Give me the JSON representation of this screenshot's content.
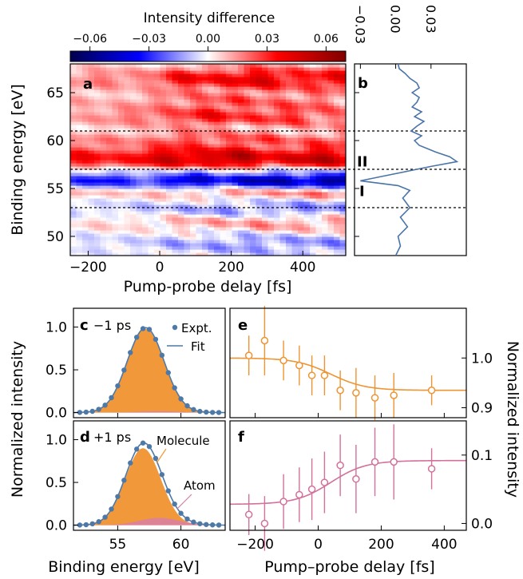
{
  "chart_data": [
    {
      "panel": "a",
      "type": "heatmap",
      "colorbar": {
        "label": "Intensity difference",
        "ticks": [
          "−0.06",
          "−0.03",
          "0.00",
          "0.03",
          "0.06"
        ],
        "range": [
          -0.07,
          0.07
        ],
        "colormap": "seismic"
      },
      "xlabel": "Pump-probe delay [fs]",
      "ylabel": "Binding energy [eV]",
      "xlim": [
        -250,
        520
      ],
      "ylim": [
        48,
        68
      ],
      "xticks": [
        "−200",
        "0",
        "200",
        "400"
      ],
      "yticks": [
        "50",
        "55",
        "60",
        "65"
      ],
      "dashed_lines_y": [
        61,
        57,
        53
      ],
      "bands": [
        {
          "y": 66.5,
          "w": 0.9,
          "amp": 0.045
        },
        {
          "y": 64.2,
          "w": 0.7,
          "amp": 0.02
        },
        {
          "y": 62.5,
          "w": 0.8,
          "amp": 0.035
        },
        {
          "y": 60.2,
          "w": 0.6,
          "amp": 0.025
        },
        {
          "y": 58.2,
          "w": 0.9,
          "amp": 0.07
        },
        {
          "y": 57.0,
          "w": 0.3,
          "amp": -0.02
        },
        {
          "y": 55.9,
          "w": 0.55,
          "amp": -0.07
        },
        {
          "y": 54.6,
          "w": 0.4,
          "amp": 0.02
        },
        {
          "y": 52.8,
          "w": 0.6,
          "amp": -0.02
        },
        {
          "y": 51.5,
          "w": 0.8,
          "amp": 0.015
        },
        {
          "y": 49.3,
          "w": 0.8,
          "amp": -0.015
        }
      ]
    },
    {
      "panel": "b",
      "type": "line",
      "xticks": [
        "−0.03",
        "0.00",
        "0.03"
      ],
      "xlim": [
        -0.035,
        0.06
      ],
      "labels": [
        "II",
        "I"
      ],
      "label_y": [
        57.8,
        54.7
      ],
      "y": [
        48.0,
        49.0,
        50.0,
        51.0,
        52.0,
        53.0,
        54.0,
        54.8,
        55.3,
        55.8,
        56.3,
        56.8,
        57.3,
        57.8,
        58.3,
        58.8,
        59.5,
        60.0,
        60.5,
        61.0,
        61.5,
        62.0,
        62.5,
        63.0,
        63.5,
        64.0,
        64.5,
        65.0,
        65.5,
        66.0,
        66.5,
        67.0,
        67.5,
        68.0
      ],
      "x": [
        0.0,
        0.004,
        0.002,
        0.01,
        0.004,
        0.012,
        0.006,
        0.012,
        0.002,
        -0.03,
        -0.01,
        0.01,
        0.03,
        0.052,
        0.046,
        0.034,
        0.02,
        0.016,
        0.022,
        0.013,
        0.018,
        0.024,
        0.016,
        0.022,
        0.014,
        0.018,
        0.02,
        0.014,
        0.02,
        0.018,
        0.012,
        0.008,
        0.003,
        0.002
      ]
    },
    {
      "panel": "c",
      "type": "scatter",
      "title": "−1 ps",
      "legend": [
        "Expt.",
        "Fit"
      ],
      "xlim": [
        51.5,
        63.5
      ],
      "ylim": [
        -0.06,
        1.22
      ],
      "yticks": [
        "0.0",
        "0.5",
        "1.0"
      ],
      "peak": {
        "center": 57.2,
        "sigma": 1.45,
        "amplitude": 0.98
      },
      "atom": {
        "center": 58.2,
        "sigma": 1.6,
        "amplitude": 0.015
      },
      "x": [
        52.0,
        52.5,
        53.0,
        53.5,
        54.0,
        54.5,
        55.0,
        55.5,
        56.0,
        56.5,
        57.0,
        57.5,
        58.0,
        58.5,
        59.0,
        59.5,
        60.0,
        60.5,
        61.0,
        61.5,
        62.0,
        62.5,
        63.0
      ]
    },
    {
      "panel": "d",
      "type": "scatter",
      "title": "+1 ps",
      "annotations": [
        "Molecule",
        "Atom"
      ],
      "xlim": [
        51.5,
        63.5
      ],
      "ylim": [
        -0.06,
        1.22
      ],
      "xticks": [
        "55",
        "60"
      ],
      "yticks": [
        "0.0",
        "0.5",
        "1.0"
      ],
      "xlabel": "Binding energy [eV]",
      "peak": {
        "center": 57.0,
        "sigma": 1.4,
        "amplitude": 0.9
      },
      "atom": {
        "center": 58.3,
        "sigma": 1.6,
        "amplitude": 0.085
      },
      "x": [
        52.0,
        52.5,
        53.0,
        53.5,
        54.0,
        54.5,
        55.0,
        55.5,
        56.0,
        56.5,
        57.0,
        57.5,
        58.0,
        58.5,
        59.0,
        59.5,
        60.0,
        60.5,
        61.0,
        61.5,
        62.0,
        62.5,
        63.0
      ]
    },
    {
      "panel": "e",
      "type": "scatter",
      "xlim": [
        -280,
        470
      ],
      "ylim": [
        0.88,
        1.1
      ],
      "yticks": [
        "0.9",
        "1.0"
      ],
      "x": [
        -220,
        -170,
        -110,
        -60,
        -20,
        20,
        70,
        120,
        180,
        240,
        360
      ],
      "y": [
        1.005,
        1.035,
        0.995,
        0.985,
        0.965,
        0.965,
        0.935,
        0.93,
        0.92,
        0.925,
        0.935
      ],
      "err": [
        0.04,
        0.07,
        0.04,
        0.04,
        0.04,
        0.04,
        0.04,
        0.05,
        0.045,
        0.045,
        0.03
      ],
      "fit": {
        "y0": 1.0,
        "y1": 0.935,
        "t0": 40,
        "tau": 55
      },
      "color": "#ee9432"
    },
    {
      "panel": "f",
      "type": "scatter",
      "xlim": [
        -280,
        470
      ],
      "ylim": [
        -0.01,
        0.15
      ],
      "xticks": [
        "−200",
        "0",
        "200",
        "400"
      ],
      "yticks": [
        "0.0",
        "0.1"
      ],
      "xlabel": "Pump–probe delay [fs]",
      "ylabel": "Normalized intensity",
      "x": [
        -220,
        -170,
        -110,
        -60,
        -20,
        20,
        70,
        120,
        180,
        240,
        360
      ],
      "y": [
        0.013,
        0.0,
        0.032,
        0.042,
        0.05,
        0.06,
        0.085,
        0.065,
        0.09,
        0.09,
        0.08
      ],
      "err": [
        0.03,
        0.04,
        0.04,
        0.04,
        0.045,
        0.045,
        0.045,
        0.05,
        0.05,
        0.055,
        0.03
      ],
      "fit": {
        "y0": 0.028,
        "y1": 0.092,
        "t0": 40,
        "tau": 55
      },
      "color": "#d2719b"
    }
  ],
  "labels": {
    "cbar_label": "Intensity difference",
    "ylabel_a": "Binding energy [eV]",
    "xlabel_a": "Pump-probe delay [fs]",
    "ylabel_cd": "Normalized intensity",
    "xlabel_d": "Binding energy [eV]",
    "xlabel_f": "Pump–probe delay [fs]",
    "ylabel_ef": "Normalized intensity",
    "panel_a": "a",
    "panel_b": "b",
    "panel_c": "c",
    "panel_d": "d",
    "panel_e": "e",
    "panel_f": "f",
    "legend_expt": "Expt.",
    "legend_fit": "Fit",
    "c_title": "−1 ps",
    "d_title": "+1 ps",
    "ann_molecule": "Molecule",
    "ann_atom": "Atom",
    "b_label_II": "II",
    "b_label_I": "I"
  },
  "colors": {
    "expt": "#4e79a7",
    "fit": "#4e79a7",
    "molecule": "#f0983a",
    "atom": "#d87fa6",
    "e": "#ee9432",
    "f": "#d2719b",
    "line_b": "#4a74a8"
  }
}
